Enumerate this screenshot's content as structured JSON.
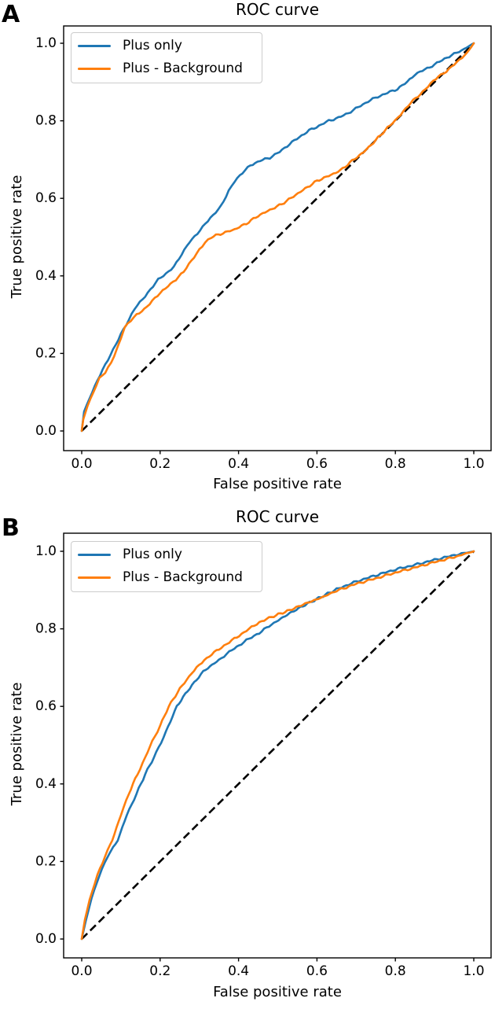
{
  "figure": {
    "background": "#ffffff"
  },
  "colors": {
    "plus_only": "#1f77b4",
    "plus_background": "#ff7f0e",
    "diagonal": "#000000",
    "spine": "#000000",
    "text": "#000000",
    "legend_border": "#cccccc"
  },
  "chart_data": [
    {
      "type": "line",
      "panel_label": "A",
      "title": "ROC curve",
      "xlabel": "False positive rate",
      "ylabel": "True positive rate",
      "xlim": [
        0,
        1
      ],
      "ylim": [
        0,
        1
      ],
      "x_ticks": [
        0.0,
        0.2,
        0.4,
        0.6,
        0.8,
        1.0
      ],
      "y_ticks": [
        0.0,
        0.2,
        0.4,
        0.6,
        0.8,
        1.0
      ],
      "grid": false,
      "legend_position": "upper left",
      "diagonal_reference": {
        "style": "dashed",
        "color": "#000000",
        "from": [
          0,
          0
        ],
        "to": [
          1,
          1
        ]
      },
      "series": [
        {
          "name": "Plus only",
          "color": "#1f77b4",
          "points": [
            [
              0,
              0
            ],
            [
              0.006,
              0.05
            ],
            [
              0.02,
              0.085
            ],
            [
              0.04,
              0.13
            ],
            [
              0.06,
              0.17
            ],
            [
              0.08,
              0.21
            ],
            [
              0.1,
              0.25
            ],
            [
              0.12,
              0.285
            ],
            [
              0.135,
              0.315
            ],
            [
              0.155,
              0.34
            ],
            [
              0.175,
              0.365
            ],
            [
              0.195,
              0.39
            ],
            [
              0.215,
              0.405
            ],
            [
              0.235,
              0.425
            ],
            [
              0.255,
              0.455
            ],
            [
              0.275,
              0.487
            ],
            [
              0.295,
              0.51
            ],
            [
              0.315,
              0.535
            ],
            [
              0.335,
              0.555
            ],
            [
              0.355,
              0.58
            ],
            [
              0.375,
              0.62
            ],
            [
              0.39,
              0.645
            ],
            [
              0.41,
              0.665
            ],
            [
              0.43,
              0.685
            ],
            [
              0.455,
              0.697
            ],
            [
              0.48,
              0.705
            ],
            [
              0.505,
              0.72
            ],
            [
              0.53,
              0.74
            ],
            [
              0.555,
              0.758
            ],
            [
              0.58,
              0.775
            ],
            [
              0.605,
              0.787
            ],
            [
              0.63,
              0.8
            ],
            [
              0.655,
              0.808
            ],
            [
              0.68,
              0.82
            ],
            [
              0.705,
              0.835
            ],
            [
              0.73,
              0.85
            ],
            [
              0.755,
              0.862
            ],
            [
              0.78,
              0.872
            ],
            [
              0.805,
              0.882
            ],
            [
              0.83,
              0.9
            ],
            [
              0.85,
              0.92
            ],
            [
              0.875,
              0.932
            ],
            [
              0.9,
              0.945
            ],
            [
              0.925,
              0.96
            ],
            [
              0.95,
              0.972
            ],
            [
              0.975,
              0.985
            ],
            [
              1,
              1
            ]
          ]
        },
        {
          "name": "Plus - Background",
          "color": "#ff7f0e",
          "points": [
            [
              0,
              0
            ],
            [
              0.004,
              0.03
            ],
            [
              0.015,
              0.065
            ],
            [
              0.03,
              0.1
            ],
            [
              0.045,
              0.135
            ],
            [
              0.06,
              0.15
            ],
            [
              0.075,
              0.175
            ],
            [
              0.09,
              0.21
            ],
            [
              0.1,
              0.24
            ],
            [
              0.11,
              0.268
            ],
            [
              0.125,
              0.285
            ],
            [
              0.14,
              0.3
            ],
            [
              0.16,
              0.315
            ],
            [
              0.18,
              0.335
            ],
            [
              0.2,
              0.355
            ],
            [
              0.22,
              0.375
            ],
            [
              0.24,
              0.39
            ],
            [
              0.26,
              0.41
            ],
            [
              0.28,
              0.44
            ],
            [
              0.3,
              0.468
            ],
            [
              0.315,
              0.487
            ],
            [
              0.33,
              0.5
            ],
            [
              0.36,
              0.51
            ],
            [
              0.39,
              0.52
            ],
            [
              0.42,
              0.535
            ],
            [
              0.45,
              0.555
            ],
            [
              0.48,
              0.57
            ],
            [
              0.51,
              0.585
            ],
            [
              0.54,
              0.605
            ],
            [
              0.57,
              0.625
            ],
            [
              0.6,
              0.645
            ],
            [
              0.63,
              0.658
            ],
            [
              0.66,
              0.672
            ],
            [
              0.69,
              0.697
            ],
            [
              0.72,
              0.72
            ],
            [
              0.75,
              0.75
            ],
            [
              0.78,
              0.782
            ],
            [
              0.8,
              0.8
            ],
            [
              0.82,
              0.825
            ],
            [
              0.845,
              0.852
            ],
            [
              0.87,
              0.875
            ],
            [
              0.89,
              0.895
            ],
            [
              0.91,
              0.915
            ],
            [
              0.93,
              0.928
            ],
            [
              0.95,
              0.945
            ],
            [
              0.97,
              0.962
            ],
            [
              0.985,
              0.978
            ],
            [
              1,
              1
            ]
          ]
        }
      ]
    },
    {
      "type": "line",
      "panel_label": "B",
      "title": "ROC curve",
      "xlabel": "False positive rate",
      "ylabel": "True positive rate",
      "xlim": [
        0,
        1
      ],
      "ylim": [
        0,
        1
      ],
      "x_ticks": [
        0.0,
        0.2,
        0.4,
        0.6,
        0.8,
        1.0
      ],
      "y_ticks": [
        0.0,
        0.2,
        0.4,
        0.6,
        0.8,
        1.0
      ],
      "grid": false,
      "legend_position": "upper left",
      "diagonal_reference": {
        "style": "dashed",
        "color": "#000000",
        "from": [
          0,
          0
        ],
        "to": [
          1,
          1
        ]
      },
      "series": [
        {
          "name": "Plus only",
          "color": "#1f77b4",
          "points": [
            [
              0,
              0
            ],
            [
              0.01,
              0.045
            ],
            [
              0.025,
              0.105
            ],
            [
              0.045,
              0.165
            ],
            [
              0.065,
              0.21
            ],
            [
              0.08,
              0.235
            ],
            [
              0.092,
              0.255
            ],
            [
              0.115,
              0.32
            ],
            [
              0.14,
              0.375
            ],
            [
              0.162,
              0.425
            ],
            [
              0.19,
              0.48
            ],
            [
              0.215,
              0.535
            ],
            [
              0.2425,
              0.6
            ],
            [
              0.27,
              0.64
            ],
            [
              0.31,
              0.69
            ],
            [
              0.35,
              0.72
            ],
            [
              0.383,
              0.745
            ],
            [
              0.42,
              0.77
            ],
            [
              0.453,
              0.79
            ],
            [
              0.49,
              0.815
            ],
            [
              0.53,
              0.84
            ],
            [
              0.57,
              0.862
            ],
            [
              0.61,
              0.882
            ],
            [
              0.65,
              0.902
            ],
            [
              0.7,
              0.922
            ],
            [
              0.75,
              0.938
            ],
            [
              0.8,
              0.953
            ],
            [
              0.85,
              0.965
            ],
            [
              0.9,
              0.978
            ],
            [
              0.95,
              0.99
            ],
            [
              1,
              1
            ]
          ]
        },
        {
          "name": "Plus - Background",
          "color": "#ff7f0e",
          "points": [
            [
              0,
              0
            ],
            [
              0.008,
              0.05
            ],
            [
              0.02,
              0.1
            ],
            [
              0.04,
              0.165
            ],
            [
              0.06,
              0.215
            ],
            [
              0.078,
              0.255
            ],
            [
              0.1,
              0.32
            ],
            [
              0.12,
              0.375
            ],
            [
              0.142,
              0.425
            ],
            [
              0.162,
              0.468
            ],
            [
              0.18,
              0.51
            ],
            [
              0.2,
              0.55
            ],
            [
              0.222,
              0.6
            ],
            [
              0.25,
              0.645
            ],
            [
              0.28,
              0.685
            ],
            [
              0.313,
              0.72
            ],
            [
              0.35,
              0.748
            ],
            [
              0.383,
              0.77
            ],
            [
              0.42,
              0.795
            ],
            [
              0.453,
              0.817
            ],
            [
              0.49,
              0.833
            ],
            [
              0.53,
              0.848
            ],
            [
              0.57,
              0.865
            ],
            [
              0.61,
              0.88
            ],
            [
              0.65,
              0.898
            ],
            [
              0.7,
              0.916
            ],
            [
              0.75,
              0.93
            ],
            [
              0.8,
              0.945
            ],
            [
              0.85,
              0.958
            ],
            [
              0.9,
              0.972
            ],
            [
              0.95,
              0.985
            ],
            [
              1,
              1
            ]
          ]
        }
      ]
    }
  ]
}
